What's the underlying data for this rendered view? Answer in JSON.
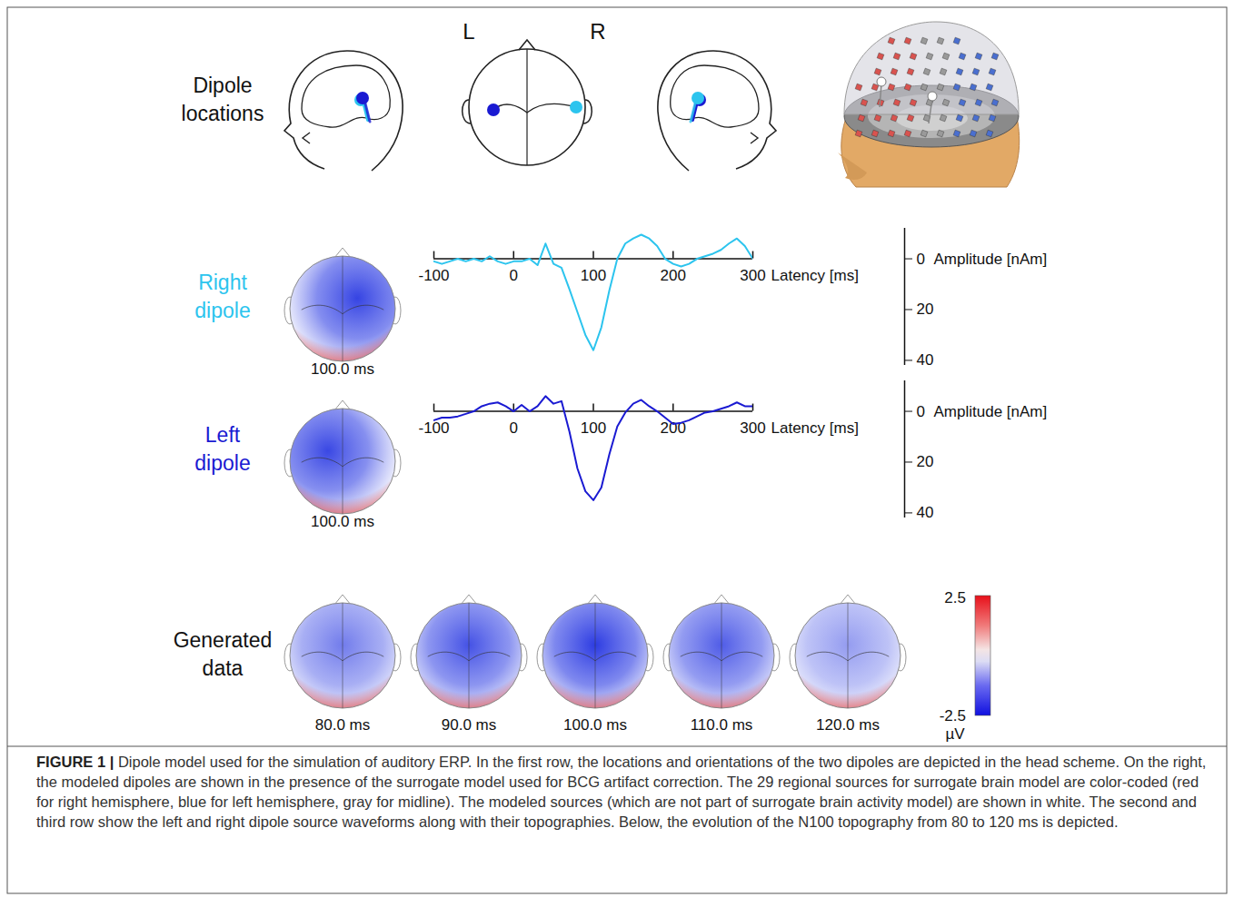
{
  "header": {
    "title": "Dipole locations",
    "left_label": "L",
    "right_label": "R"
  },
  "chart_data": [
    {
      "type": "line",
      "title": "Right dipole",
      "x": [
        -100,
        -90,
        -80,
        -70,
        -60,
        -50,
        -40,
        -30,
        -20,
        -10,
        0,
        10,
        20,
        30,
        40,
        50,
        60,
        70,
        80,
        90,
        100,
        110,
        120,
        130,
        140,
        150,
        160,
        170,
        180,
        190,
        200,
        210,
        220,
        230,
        240,
        250,
        260,
        270,
        280,
        290,
        300
      ],
      "series": [
        {
          "color": "#2cc4ee",
          "values": [
            1,
            2,
            1,
            0,
            1,
            0,
            1,
            -1,
            1,
            2,
            1,
            1,
            0,
            2.5,
            -6,
            2,
            3.5,
            12,
            21,
            30,
            36,
            27,
            12.5,
            0,
            -6,
            -8,
            -9.5,
            -8,
            -5,
            0,
            2,
            3,
            2,
            0,
            -1,
            -2,
            -3.5,
            -6,
            -8,
            -5,
            0
          ]
        }
      ],
      "xlabel": "Latency [ms]",
      "ylabel": "Amplitude [nAm]",
      "xlim": [
        -100,
        300
      ],
      "xticks": [
        -100,
        0,
        100,
        200,
        300
      ],
      "ylim": [
        -12,
        42
      ],
      "yticks": [
        0,
        20,
        40
      ],
      "topography": {
        "time": 100,
        "label": "100.0 ms"
      }
    },
    {
      "type": "line",
      "title": "Left dipole",
      "x": [
        -100,
        -90,
        -80,
        -70,
        -60,
        -50,
        -40,
        -30,
        -20,
        -10,
        0,
        10,
        20,
        30,
        40,
        50,
        60,
        70,
        80,
        90,
        100,
        110,
        120,
        130,
        140,
        150,
        160,
        170,
        180,
        190,
        200,
        210,
        220,
        230,
        240,
        250,
        260,
        270,
        280,
        290,
        300
      ],
      "series": [
        {
          "color": "#1a1ad2",
          "values": [
            3.5,
            2.5,
            2.5,
            2,
            1,
            0,
            -2,
            -3,
            -3.5,
            -2,
            0,
            -2.5,
            0,
            -2,
            -6,
            -3,
            -4,
            8,
            22.5,
            31.5,
            35,
            30,
            17,
            6,
            0.5,
            -3,
            -4.5,
            -2,
            0,
            2.5,
            5,
            4.5,
            3.5,
            2,
            0.5,
            0,
            -1,
            -2,
            -3.5,
            -2,
            -2
          ]
        }
      ],
      "xlabel": "Latency [ms]",
      "ylabel": "Amplitude [nAm]",
      "xlim": [
        -100,
        300
      ],
      "xticks": [
        -100,
        0,
        100,
        200,
        300
      ],
      "ylim": [
        -12,
        42
      ],
      "yticks": [
        0,
        20,
        40
      ],
      "topography": {
        "time": 100,
        "label": "100.0 ms"
      }
    }
  ],
  "generated_data": {
    "label": "Generated data",
    "topographies": [
      {
        "time": 80,
        "label": "80.0 ms"
      },
      {
        "time": 90,
        "label": "90.0 ms"
      },
      {
        "time": 100,
        "label": "100.0 ms"
      },
      {
        "time": 110,
        "label": "110.0 ms"
      },
      {
        "time": 120,
        "label": "120.0 ms"
      }
    ]
  },
  "colorbar": {
    "range": [
      -2.5,
      2.5
    ],
    "ticks": [
      2.5,
      -2.5
    ],
    "unit": "µV"
  },
  "caption": {
    "label": "FIGURE 1 |",
    "text": "Dipole model used for the simulation of auditory ERP. In the first row, the locations and orientations of the two dipoles are depicted in the head scheme. On the right, the modeled dipoles are shown in the presence of the surrogate model used for BCG artifact correction. The 29 regional sources for surrogate brain model are color-coded (red for right hemisphere, blue for left hemisphere, gray for midline). The modeled sources (which are not part of surrogate brain activity model) are shown in white. The second and third row show the left and right dipole source waveforms along with their topographies. Below, the evolution of the N100 topography from 80 to 120 ms is depicted."
  }
}
